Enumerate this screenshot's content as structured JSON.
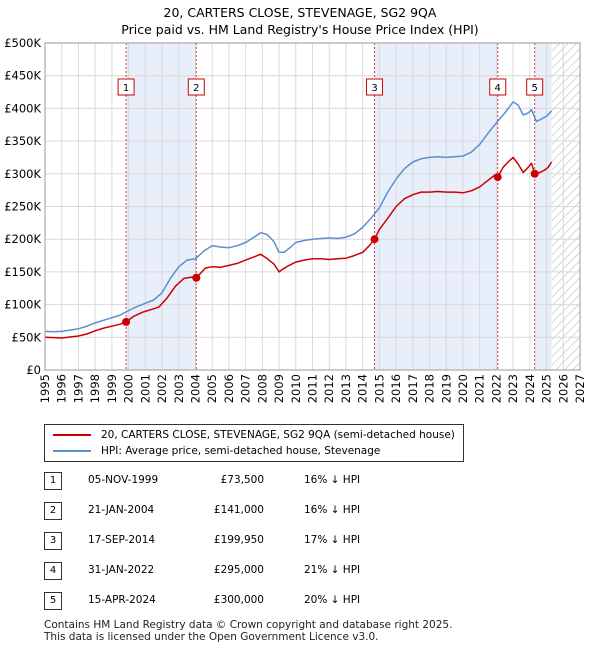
{
  "chart_data": {
    "type": "line",
    "title": "20, CARTERS CLOSE, STEVENAGE, SG2 9QA",
    "subtitle": "Price paid vs. HM Land Registry's House Price Index (HPI)",
    "xlabel": "",
    "ylabel": "",
    "xlim": [
      1995,
      2027
    ],
    "ylim": [
      0,
      500000
    ],
    "x_ticks": [
      "1995",
      "1996",
      "1997",
      "1998",
      "1999",
      "2000",
      "2001",
      "2002",
      "2003",
      "2004",
      "2005",
      "2006",
      "2007",
      "2008",
      "2009",
      "2010",
      "2011",
      "2012",
      "2013",
      "2014",
      "2015",
      "2016",
      "2017",
      "2018",
      "2019",
      "2020",
      "2021",
      "2022",
      "2023",
      "2024",
      "2025",
      "2026",
      "2027"
    ],
    "y_ticks": [
      {
        "value": 0,
        "label": "£0"
      },
      {
        "value": 50000,
        "label": "£50K"
      },
      {
        "value": 100000,
        "label": "£100K"
      },
      {
        "value": 150000,
        "label": "£150K"
      },
      {
        "value": 200000,
        "label": "£200K"
      },
      {
        "value": 250000,
        "label": "£250K"
      },
      {
        "value": 300000,
        "label": "£300K"
      },
      {
        "value": 350000,
        "label": "£350K"
      },
      {
        "value": 400000,
        "label": "£400K"
      },
      {
        "value": 450000,
        "label": "£450K"
      },
      {
        "value": 500000,
        "label": "£500K"
      }
    ],
    "grid": true,
    "forecast_start": 2025.3,
    "shaded_ranges": [
      [
        1999.85,
        2004.05
      ],
      [
        2014.71,
        2022.08
      ],
      [
        2024.29,
        2025.3
      ]
    ],
    "series": [
      {
        "name": "20, CARTERS CLOSE, STEVENAGE, SG2 9QA (semi-detached house)",
        "color": "#cc0000",
        "x": [
          1995.0,
          1995.5,
          1996.0,
          1996.5,
          1997.0,
          1997.5,
          1998.0,
          1998.5,
          1999.0,
          1999.5,
          1999.85,
          2000.3,
          2000.8,
          2001.3,
          2001.8,
          2002.3,
          2002.8,
          2003.3,
          2003.8,
          2004.05,
          2004.6,
          2005.0,
          2005.5,
          2006.0,
          2006.5,
          2007.0,
          2007.5,
          2007.9,
          2008.3,
          2008.7,
          2009.0,
          2009.2,
          2009.6,
          2010.0,
          2010.5,
          2011.0,
          2011.5,
          2012.0,
          2012.5,
          2013.0,
          2013.5,
          2014.0,
          2014.4,
          2014.71,
          2015.0,
          2015.5,
          2016.0,
          2016.5,
          2017.0,
          2017.5,
          2018.0,
          2018.5,
          2019.0,
          2019.5,
          2020.0,
          2020.5,
          2021.0,
          2021.5,
          2021.9,
          2022.08,
          2022.4,
          2022.7,
          2023.0,
          2023.3,
          2023.6,
          2023.9,
          2024.1,
          2024.29,
          2024.6,
          2024.9,
          2025.1,
          2025.3
        ],
        "values": [
          50000,
          49500,
          49000,
          50500,
          52000,
          55000,
          60000,
          64000,
          67000,
          70000,
          73500,
          82000,
          88000,
          92000,
          96000,
          110000,
          128000,
          140000,
          142000,
          141000,
          156000,
          158000,
          157000,
          160000,
          163000,
          168000,
          173000,
          177000,
          170000,
          162000,
          150000,
          154000,
          160000,
          165000,
          168000,
          170000,
          170000,
          169000,
          170000,
          171000,
          175000,
          180000,
          190000,
          199950,
          215000,
          232000,
          250000,
          262000,
          268000,
          272000,
          272000,
          273000,
          272000,
          272000,
          271000,
          274000,
          280000,
          290000,
          298000,
          295000,
          310000,
          318000,
          325000,
          315000,
          302000,
          310000,
          316000,
          300000,
          302000,
          306000,
          310000,
          318000
        ]
      },
      {
        "name": "HPI: Average price, semi-detached house, Stevenage",
        "color": "#5b8fd0",
        "x": [
          1995.0,
          1995.5,
          1996.0,
          1996.5,
          1997.0,
          1997.5,
          1998.0,
          1998.5,
          1999.0,
          1999.5,
          2000.0,
          2000.5,
          2001.0,
          2001.5,
          2002.0,
          2002.5,
          2003.0,
          2003.5,
          2004.0,
          2004.5,
          2005.0,
          2005.5,
          2006.0,
          2006.5,
          2007.0,
          2007.5,
          2007.9,
          2008.3,
          2008.7,
          2009.0,
          2009.3,
          2009.7,
          2010.0,
          2010.5,
          2011.0,
          2011.5,
          2012.0,
          2012.5,
          2013.0,
          2013.5,
          2014.0,
          2014.5,
          2015.0,
          2015.5,
          2016.0,
          2016.5,
          2017.0,
          2017.5,
          2018.0,
          2018.5,
          2019.0,
          2019.5,
          2020.0,
          2020.5,
          2021.0,
          2021.5,
          2022.0,
          2022.5,
          2023.0,
          2023.3,
          2023.6,
          2023.9,
          2024.1,
          2024.4,
          2024.7,
          2025.0,
          2025.3
        ],
        "values": [
          59000,
          58500,
          59000,
          61000,
          63000,
          67000,
          72000,
          76000,
          80000,
          84000,
          91000,
          97000,
          102000,
          107000,
          118000,
          140000,
          158000,
          168000,
          170000,
          182000,
          190000,
          188000,
          187000,
          190000,
          195000,
          203000,
          210000,
          207000,
          196000,
          180000,
          180000,
          188000,
          195000,
          198000,
          200000,
          201000,
          202000,
          201000,
          203000,
          208000,
          218000,
          232000,
          248000,
          272000,
          292000,
          308000,
          318000,
          323000,
          325000,
          326000,
          325000,
          326000,
          327000,
          333000,
          345000,
          362000,
          378000,
          393000,
          410000,
          405000,
          390000,
          393000,
          398000,
          380000,
          384000,
          388000,
          396000
        ]
      }
    ],
    "sales": [
      {
        "label": "1",
        "x": 1999.85,
        "value": 73500
      },
      {
        "label": "2",
        "x": 2004.05,
        "value": 141000
      },
      {
        "label": "3",
        "x": 2014.71,
        "value": 199950
      },
      {
        "label": "4",
        "x": 2022.08,
        "value": 295000
      },
      {
        "label": "5",
        "x": 2024.29,
        "value": 300000
      }
    ]
  },
  "legend": {
    "property_label": "20, CARTERS CLOSE, STEVENAGE, SG2 9QA (semi-detached house)",
    "hpi_label": "HPI: Average price, semi-detached house, Stevenage",
    "property_color": "#cc0000",
    "hpi_color": "#5b8fd0"
  },
  "sales_table": [
    {
      "num": "1",
      "date": "05-NOV-1999",
      "price": "£73,500",
      "hpi": "16% ↓ HPI"
    },
    {
      "num": "2",
      "date": "21-JAN-2004",
      "price": "£141,000",
      "hpi": "16% ↓ HPI"
    },
    {
      "num": "3",
      "date": "17-SEP-2014",
      "price": "£199,950",
      "hpi": "17% ↓ HPI"
    },
    {
      "num": "4",
      "date": "31-JAN-2022",
      "price": "£295,000",
      "hpi": "21% ↓ HPI"
    },
    {
      "num": "5",
      "date": "15-APR-2024",
      "price": "£300,000",
      "hpi": "20% ↓ HPI"
    }
  ],
  "footer": {
    "line1": "Contains HM Land Registry data © Crown copyright and database right 2025.",
    "line2": "This data is licensed under the Open Government Licence v3.0."
  }
}
